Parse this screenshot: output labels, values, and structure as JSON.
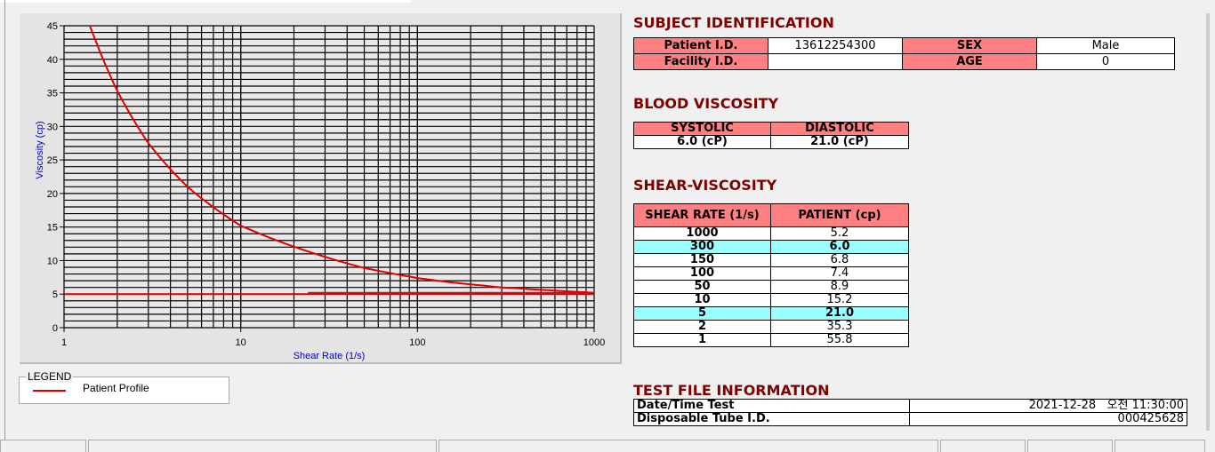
{
  "chart_data": {
    "type": "line",
    "xlabel": "Shear Rate (1/s)",
    "ylabel": "Viscosity (cp)",
    "x_scale": "log",
    "xlim": [
      1,
      1000
    ],
    "ylim": [
      0,
      45
    ],
    "x_ticks": [
      "1",
      "10",
      "100",
      "1000"
    ],
    "y_ticks": [
      "0",
      "5",
      "10",
      "15",
      "20",
      "25",
      "30",
      "35",
      "40",
      "45"
    ],
    "grid": true,
    "series": [
      {
        "name": "Patient Profile",
        "color": "#e00000",
        "x": [
          1.4,
          2,
          3,
          5,
          10,
          50,
          100,
          150,
          300,
          1000
        ],
        "y": [
          45,
          35.3,
          27.5,
          21.0,
          15.2,
          8.9,
          7.4,
          6.8,
          6.0,
          5.2
        ]
      },
      {
        "color": "#e00000",
        "x": [
          1,
          1000
        ],
        "y": [
          5,
          5
        ]
      },
      {
        "color": "#b02020",
        "x": [
          24,
          1000
        ],
        "y": [
          5.2,
          5.2
        ]
      }
    ]
  },
  "legend": {
    "title": "LEGEND",
    "items": [
      "Patient Profile"
    ]
  },
  "subject": {
    "title": "SUBJECT IDENTIFICATION",
    "patient_id_label": "Patient I.D.",
    "patient_id": "13612254300",
    "sex_label": "SEX",
    "sex": "Male",
    "facility_label": "Facility I.D.",
    "facility": "",
    "age_label": "AGE",
    "age": "0"
  },
  "blood": {
    "title": "BLOOD VISCOSITY",
    "systolic_label": "SYSTOLIC",
    "diastolic_label": "DIASTOLIC",
    "systolic": "6.0 (cP)",
    "diastolic": "21.0 (cP)"
  },
  "shear": {
    "title": "SHEAR-VISCOSITY",
    "headers": [
      "SHEAR RATE (1/s)",
      "PATIENT (cp)"
    ],
    "rows": [
      {
        "rate": "1000",
        "value": "5.2",
        "hl": false
      },
      {
        "rate": "300",
        "value": "6.0",
        "hl": true
      },
      {
        "rate": "150",
        "value": "6.8",
        "hl": false
      },
      {
        "rate": "100",
        "value": "7.4",
        "hl": false
      },
      {
        "rate": "50",
        "value": "8.9",
        "hl": false
      },
      {
        "rate": "10",
        "value": "15.2",
        "hl": false
      },
      {
        "rate": "5",
        "value": "21.0",
        "hl": true
      },
      {
        "rate": "2",
        "value": "35.3",
        "hl": false
      },
      {
        "rate": "1",
        "value": "55.8",
        "hl": false
      }
    ]
  },
  "testfile": {
    "title": "TEST FILE INFORMATION",
    "date_label": "Date/Time Test",
    "date": "2021-12-28   오전 11:30:00",
    "tube_label": "Disposable Tube I.D.",
    "tube": "000425628"
  }
}
